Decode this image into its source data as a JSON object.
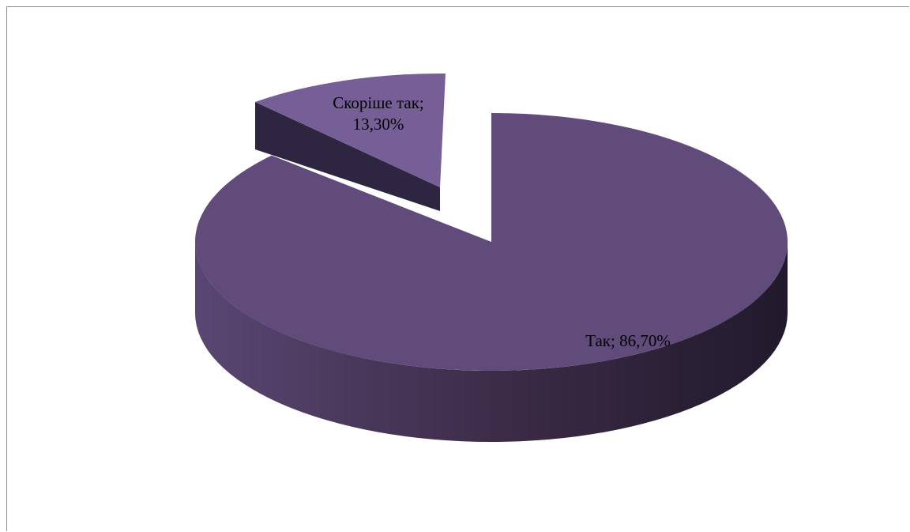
{
  "chart_data": {
    "type": "pie",
    "style": "3d-exploded",
    "categories": [
      "Так",
      "Скоріше так"
    ],
    "values": [
      86.7,
      13.3
    ],
    "value_labels": [
      "86,70%",
      "13,30%"
    ],
    "separator": "; ",
    "colors": {
      "top": [
        "#614b7a",
        "#765e97"
      ],
      "side_light": "#5a4672",
      "side_dark": "#201a2c",
      "wall": "#2e2640"
    },
    "legend": "none"
  }
}
